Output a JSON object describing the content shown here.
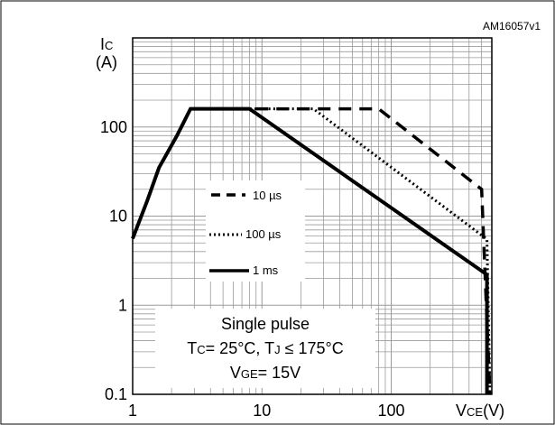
{
  "figure_id": "AM16057v1",
  "chart_data": {
    "type": "line",
    "x_scale": "log",
    "y_scale": "log",
    "xlim": [
      1,
      600
    ],
    "ylim": [
      0.1,
      1000
    ],
    "grid": true,
    "x_ticks": [
      {
        "value": 1,
        "label": "1"
      },
      {
        "value": 10,
        "label": "10"
      },
      {
        "value": 100,
        "label": "100"
      }
    ],
    "y_ticks": [
      {
        "value": 0.1,
        "label": "0.1"
      },
      {
        "value": 1,
        "label": "1"
      },
      {
        "value": 10,
        "label": "10"
      },
      {
        "value": 100,
        "label": "100"
      }
    ],
    "ylabel_main": "I",
    "ylabel_sub": "C",
    "ylabel_unit": "(A)",
    "xlabel_main": "V",
    "xlabel_sub": "CE",
    "xlabel_unit": "(V)",
    "legend_position": "middle-left",
    "series": [
      {
        "name": "10 µs",
        "style": "dashed",
        "points": [
          [
            1,
            5.6
          ],
          [
            1.3,
            15
          ],
          [
            1.6,
            35
          ],
          [
            2.2,
            80
          ],
          [
            2.8,
            160
          ],
          [
            8,
            160
          ],
          [
            80,
            160
          ],
          [
            500,
            20
          ],
          [
            580,
            0.1
          ]
        ]
      },
      {
        "name": "100 µs",
        "style": "dotted",
        "points": [
          [
            1,
            5.6
          ],
          [
            1.3,
            15
          ],
          [
            1.6,
            35
          ],
          [
            2.2,
            80
          ],
          [
            2.8,
            160
          ],
          [
            8,
            160
          ],
          [
            25,
            160
          ],
          [
            550,
            5.5
          ],
          [
            580,
            0.1
          ]
        ]
      },
      {
        "name": "1 ms",
        "style": "solid",
        "points": [
          [
            1,
            5.6
          ],
          [
            1.3,
            15
          ],
          [
            1.6,
            35
          ],
          [
            2.2,
            80
          ],
          [
            2.8,
            160
          ],
          [
            8,
            160
          ],
          [
            550,
            2.2
          ],
          [
            550,
            0.1
          ]
        ]
      }
    ],
    "annotation": {
      "line1": "Single pulse",
      "line2_a": "T",
      "line2_a_sub": "C",
      "line2_b": "= 25°C, T",
      "line2_b_sub": "J",
      "line2_c": " ≤ 175°C",
      "line3_a": "V",
      "line3_a_sub": "GE",
      "line3_b": "= 15V"
    }
  }
}
